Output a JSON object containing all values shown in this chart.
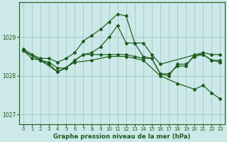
{
  "bg_color": "#cce8e8",
  "grid_color": "#aacccc",
  "line_color": "#1a5c1a",
  "title": "Graphe pression niveau de la mer (hPa)",
  "xlim": [
    -0.5,
    23.5
  ],
  "ylim": [
    1026.75,
    1029.9
  ],
  "yticks": [
    1027,
    1028,
    1029
  ],
  "xticks": [
    0,
    1,
    2,
    3,
    4,
    5,
    6,
    7,
    8,
    9,
    10,
    11,
    12,
    13,
    14,
    15,
    16,
    17,
    18,
    19,
    20,
    21,
    22,
    23
  ],
  "series": [
    {
      "x": [
        0,
        1,
        2,
        3,
        4,
        5,
        6,
        7,
        8,
        9,
        10,
        11,
        12,
        13,
        14,
        15,
        16,
        21,
        22,
        23
      ],
      "y": [
        1028.7,
        1028.55,
        1028.45,
        1028.45,
        1028.35,
        1028.45,
        1028.6,
        1028.9,
        1029.05,
        1029.2,
        1029.4,
        1029.6,
        1029.55,
        1028.85,
        1028.85,
        1028.55,
        1028.3,
        1028.6,
        1028.55,
        1028.55
      ]
    },
    {
      "x": [
        0,
        1,
        2,
        3,
        4,
        5,
        6,
        7,
        8,
        9,
        10,
        11,
        12,
        13,
        14,
        15,
        16,
        17,
        18,
        19,
        20,
        21,
        22,
        23
      ],
      "y": [
        1028.65,
        1028.45,
        1028.4,
        1028.35,
        1028.2,
        1028.2,
        1028.4,
        1028.55,
        1028.6,
        1028.75,
        1029.0,
        1029.3,
        1028.85,
        1028.85,
        1028.5,
        1028.45,
        1028.05,
        1028.05,
        1028.25,
        1028.25,
        1028.55,
        1028.55,
        1028.4,
        1028.35
      ]
    },
    {
      "x": [
        0,
        2,
        3,
        4,
        5,
        6,
        7,
        8,
        9,
        10,
        11,
        12,
        13,
        14,
        15,
        16,
        17,
        18,
        19,
        20,
        21,
        22,
        23
      ],
      "y": [
        1028.65,
        1028.4,
        1028.3,
        1028.1,
        1028.2,
        1028.4,
        1028.55,
        1028.55,
        1028.55,
        1028.55,
        1028.55,
        1028.55,
        1028.5,
        1028.45,
        1028.45,
        1028.05,
        1028.0,
        1028.3,
        1028.3,
        1028.5,
        1028.55,
        1028.4,
        1028.4
      ]
    },
    {
      "x": [
        0,
        2,
        4,
        6,
        8,
        10,
        12,
        14,
        16,
        18,
        20,
        21,
        22,
        23
      ],
      "y": [
        1028.65,
        1028.4,
        1028.1,
        1028.35,
        1028.4,
        1028.5,
        1028.5,
        1028.4,
        1028.0,
        1027.8,
        1027.65,
        1027.75,
        1027.55,
        1027.4
      ]
    }
  ]
}
